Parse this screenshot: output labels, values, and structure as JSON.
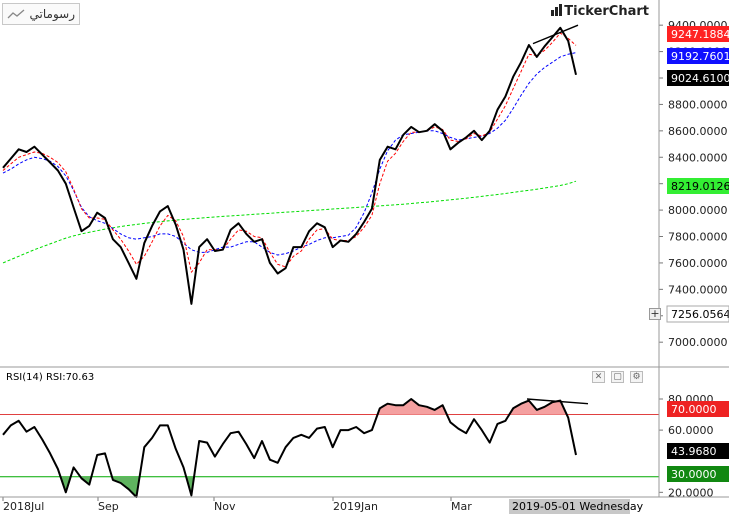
{
  "toolbar": {
    "drawings_label": "رسوماتي",
    "drawings_icon": "trend-line-icon"
  },
  "brand": {
    "name": "TickerChart"
  },
  "chart_data": [
    {
      "type": "line",
      "series": [
        {
          "name": "",
          "role": "price",
          "color": "#000000",
          "last_value": "9024.6100",
          "values": [
            8320,
            8390,
            8460,
            8440,
            8480,
            8420,
            8360,
            8300,
            8200,
            8020,
            7840,
            7880,
            7980,
            7940,
            7780,
            7720,
            7600,
            7480,
            7750,
            7880,
            7990,
            8030,
            7890,
            7700,
            7290,
            7720,
            7780,
            7690,
            7700,
            7850,
            7900,
            7820,
            7760,
            7780,
            7600,
            7520,
            7560,
            7720,
            7720,
            7840,
            7900,
            7870,
            7720,
            7770,
            7760,
            7820,
            7910,
            8010,
            8380,
            8480,
            8460,
            8570,
            8630,
            8590,
            8600,
            8650,
            8600,
            8460,
            8510,
            8550,
            8600,
            8530,
            8600,
            8760,
            8860,
            9010,
            9120,
            9250,
            9160,
            9240,
            9310,
            9380,
            9280,
            9024
          ]
        },
        {
          "name": "",
          "role": "ma-short",
          "color": "#ff0000",
          "last_value": "9247.1884",
          "values": [
            8300,
            8350,
            8400,
            8420,
            8440,
            8430,
            8400,
            8360,
            8290,
            8160,
            8010,
            7940,
            7940,
            7930,
            7850,
            7780,
            7690,
            7590,
            7650,
            7760,
            7880,
            7960,
            7920,
            7800,
            7530,
            7600,
            7700,
            7700,
            7700,
            7780,
            7850,
            7840,
            7800,
            7790,
            7680,
            7590,
            7570,
            7650,
            7690,
            7780,
            7850,
            7860,
            7780,
            7770,
            7770,
            7800,
            7870,
            7960,
            8200,
            8370,
            8430,
            8520,
            8590,
            8590,
            8600,
            8630,
            8610,
            8530,
            8520,
            8540,
            8580,
            8560,
            8590,
            8690,
            8790,
            8920,
            9050,
            9180,
            9170,
            9210,
            9270,
            9340,
            9300,
            9247
          ]
        },
        {
          "name": "",
          "role": "ma-medium",
          "color": "#0000ff",
          "last_value": "9192.7601",
          "values": [
            8280,
            8310,
            8350,
            8380,
            8400,
            8390,
            8370,
            8330,
            8260,
            8150,
            8020,
            7950,
            7920,
            7900,
            7860,
            7820,
            7790,
            7780,
            7790,
            7800,
            7820,
            7820,
            7800,
            7750,
            7700,
            7680,
            7680,
            7700,
            7720,
            7720,
            7740,
            7760,
            7760,
            7720,
            7680,
            7660,
            7670,
            7690,
            7720,
            7740,
            7770,
            7790,
            7790,
            7800,
            7810,
            7870,
            7980,
            8130,
            8310,
            8450,
            8530,
            8570,
            8580,
            8590,
            8600,
            8600,
            8580,
            8550,
            8530,
            8540,
            8550,
            8560,
            8580,
            8620,
            8680,
            8770,
            8870,
            8960,
            9030,
            9080,
            9120,
            9160,
            9180,
            9192
          ]
        },
        {
          "name": "",
          "role": "ma-long",
          "color": "#00dd00",
          "last_value": "8219.0126",
          "values": [
            7600,
            7625,
            7650,
            7675,
            7700,
            7722,
            7744,
            7766,
            7788,
            7805,
            7820,
            7832,
            7844,
            7856,
            7866,
            7876,
            7884,
            7892,
            7899,
            7906,
            7912,
            7918,
            7924,
            7929,
            7934,
            7939,
            7944,
            7948,
            7952,
            7956,
            7960,
            7964,
            7968,
            7972,
            7976,
            7980,
            7984,
            7988,
            7992,
            7996,
            8000,
            8004,
            8008,
            8012,
            8016,
            8020,
            8024,
            8028,
            8032,
            8036,
            8040,
            8045,
            8050,
            8055,
            8060,
            8066,
            8072,
            8078,
            8084,
            8090,
            8097,
            8104,
            8111,
            8118,
            8126,
            8134,
            8142,
            8150,
            8158,
            8167,
            8176,
            8186,
            8200,
            8219
          ]
        }
      ],
      "crosshair_label": "7256.0564",
      "trendline": {
        "from": 9260,
        "to": 9400
      },
      "y_ticks": [
        "9400.0000",
        "9200.0000",
        "9000.0000",
        "8800.0000",
        "8600.0000",
        "8400.0000",
        "8200.0000",
        "8000.0000",
        "7800.0000",
        "7600.0000",
        "7400.0000",
        "7200.0000",
        "7000.0000"
      ],
      "ylim": [
        6850,
        9530
      ]
    },
    {
      "type": "line",
      "title": "RSI(14)  RSI:70.63",
      "series": [
        {
          "name": "RSI(14)",
          "color": "#000000",
          "last_value": "43.9680",
          "values": [
            57,
            63,
            66,
            59,
            62,
            54,
            45,
            35,
            20,
            36,
            29,
            25,
            44,
            45,
            28,
            26,
            22,
            17,
            49,
            55,
            63,
            63,
            48,
            36,
            18,
            53,
            52,
            43,
            51,
            58,
            59,
            51,
            42,
            53,
            41,
            39,
            49,
            55,
            57,
            55,
            61,
            62,
            49,
            60,
            60,
            62,
            58,
            60,
            74,
            77,
            76,
            76,
            80,
            76,
            75,
            73,
            76,
            65,
            61,
            58,
            67,
            60,
            52,
            64,
            66,
            74,
            77,
            79,
            73,
            75,
            78,
            79,
            68,
            44
          ]
        }
      ],
      "overbought": {
        "level": 70,
        "label": "70.0000",
        "color": "#e04040"
      },
      "oversold": {
        "level": 30,
        "label": "30.0000",
        "color": "#00aa00"
      },
      "y_ticks": [
        "80.0000",
        "60.0000",
        "20.0000"
      ],
      "trendline": {
        "from": 80,
        "to": 77
      },
      "ylim": [
        17,
        89
      ]
    }
  ],
  "x_axis": {
    "labels": [
      "2018Jul",
      "Sep",
      "Nov",
      "2019Jan",
      "Mar"
    ],
    "cursor_label": "2019-05-01 Wednesday"
  },
  "panel_controls": {
    "close": "✕",
    "restore": "▢",
    "settings": "⚙"
  }
}
